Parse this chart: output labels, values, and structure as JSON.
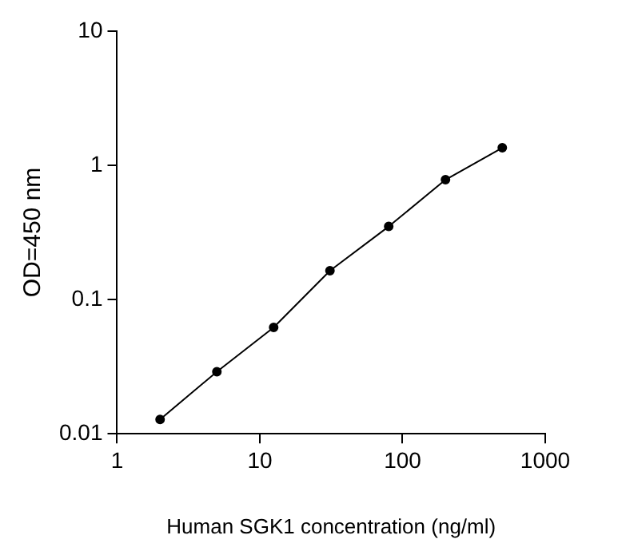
{
  "chart_data": {
    "type": "line",
    "xlabel": "Human SGK1 concentration (ng/ml)",
    "ylabel": "OD=450 nm",
    "x": [
      2,
      5,
      12.5,
      31,
      80,
      200,
      500
    ],
    "series": [
      {
        "color": "#000000",
        "values": [
          0.0128,
          0.029,
          0.062,
          0.164,
          0.35,
          0.78,
          1.35
        ]
      }
    ],
    "log": "xy",
    "xlim": [
      1,
      1000
    ],
    "xticks": [
      1,
      10,
      100,
      1000
    ],
    "ylim": [
      0.01,
      10
    ],
    "yticks": [
      0.01,
      0.1,
      1,
      10
    ],
    "grid": false,
    "legend": false,
    "marker": "circle",
    "line_style": "solid"
  }
}
